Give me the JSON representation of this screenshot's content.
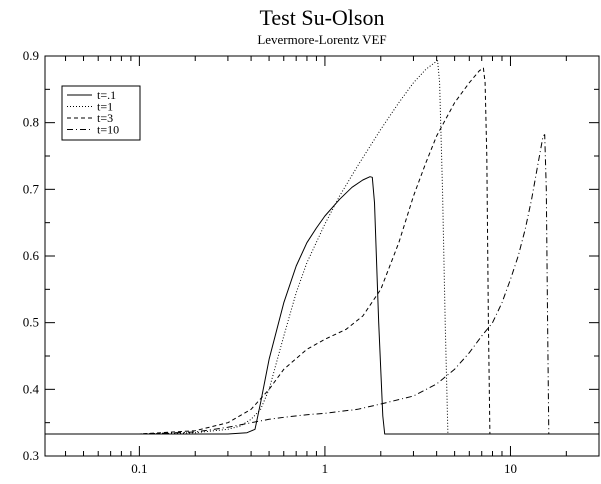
{
  "chart_data": {
    "type": "line",
    "title": "Test Su-Olson",
    "subtitle": "Levermore-Lorentz VEF",
    "xlabel": "",
    "ylabel": "",
    "x_scale": "log",
    "xlim": [
      0.031,
      30
    ],
    "ylim": [
      0.3,
      0.9
    ],
    "x_ticks": [
      0.1,
      1,
      10
    ],
    "x_tick_labels": [
      "0.1",
      "1",
      "10"
    ],
    "y_ticks": [
      0.3,
      0.4,
      0.5,
      0.6,
      0.7,
      0.8,
      0.9
    ],
    "y_tick_labels": [
      "0.3",
      "0.4",
      "0.5",
      "0.6",
      "0.7",
      "0.8",
      "0.9"
    ],
    "grid": false,
    "legend_position": "top-left",
    "series": [
      {
        "name": "t=.1",
        "dash": "solid",
        "x": [
          0.031,
          0.1,
          0.2,
          0.3,
          0.38,
          0.42,
          0.45,
          0.5,
          0.6,
          0.7,
          0.8,
          0.9,
          1.0,
          1.2,
          1.4,
          1.6,
          1.75,
          1.8,
          1.85,
          1.95,
          2.05,
          2.1,
          3,
          10,
          30
        ],
        "y": [
          0.333,
          0.333,
          0.333,
          0.333,
          0.335,
          0.34,
          0.38,
          0.445,
          0.53,
          0.585,
          0.62,
          0.642,
          0.66,
          0.685,
          0.703,
          0.714,
          0.719,
          0.718,
          0.68,
          0.5,
          0.36,
          0.333,
          0.333,
          0.333,
          0.333
        ]
      },
      {
        "name": "t=1",
        "dash": "dotted",
        "x": [
          0.031,
          0.1,
          0.2,
          0.3,
          0.35,
          0.4,
          0.45,
          0.5,
          0.6,
          0.7,
          0.8,
          1.0,
          1.2,
          1.5,
          2.0,
          2.5,
          3.0,
          3.5,
          3.9,
          4.05,
          4.15,
          4.3,
          4.45,
          4.6,
          10,
          30
        ],
        "y": [
          0.333,
          0.333,
          0.335,
          0.34,
          0.345,
          0.355,
          0.37,
          0.4,
          0.48,
          0.545,
          0.59,
          0.648,
          0.69,
          0.735,
          0.79,
          0.83,
          0.86,
          0.88,
          0.89,
          0.893,
          0.86,
          0.7,
          0.5,
          0.333,
          0.333,
          0.333
        ]
      },
      {
        "name": "t=3",
        "dash": "dashed",
        "x": [
          0.031,
          0.1,
          0.2,
          0.3,
          0.4,
          0.5,
          0.6,
          0.8,
          1.0,
          1.3,
          1.6,
          2.0,
          2.5,
          3.0,
          3.5,
          4.0,
          5.0,
          6.0,
          6.8,
          7.15,
          7.3,
          7.45,
          7.6,
          7.75,
          10,
          30
        ],
        "y": [
          0.333,
          0.333,
          0.338,
          0.35,
          0.37,
          0.4,
          0.43,
          0.46,
          0.475,
          0.49,
          0.51,
          0.55,
          0.62,
          0.69,
          0.74,
          0.78,
          0.83,
          0.86,
          0.878,
          0.882,
          0.86,
          0.75,
          0.5,
          0.333,
          0.333,
          0.333
        ]
      },
      {
        "name": "t=10",
        "dash": "dashdot",
        "x": [
          0.031,
          0.1,
          0.2,
          0.3,
          0.4,
          0.5,
          0.6,
          0.8,
          1.0,
          1.5,
          2.0,
          3.0,
          4.0,
          5.0,
          6.0,
          7.0,
          8.0,
          9.0,
          10.0,
          11.0,
          12.0,
          13.0,
          14.0,
          15.0,
          15.3,
          15.6,
          15.85,
          16.1,
          30
        ],
        "y": [
          0.333,
          0.333,
          0.336,
          0.343,
          0.35,
          0.355,
          0.358,
          0.362,
          0.364,
          0.37,
          0.378,
          0.39,
          0.408,
          0.43,
          0.455,
          0.48,
          0.5,
          0.53,
          0.565,
          0.6,
          0.64,
          0.685,
          0.735,
          0.78,
          0.782,
          0.7,
          0.5,
          0.333,
          0.333
        ]
      }
    ]
  }
}
